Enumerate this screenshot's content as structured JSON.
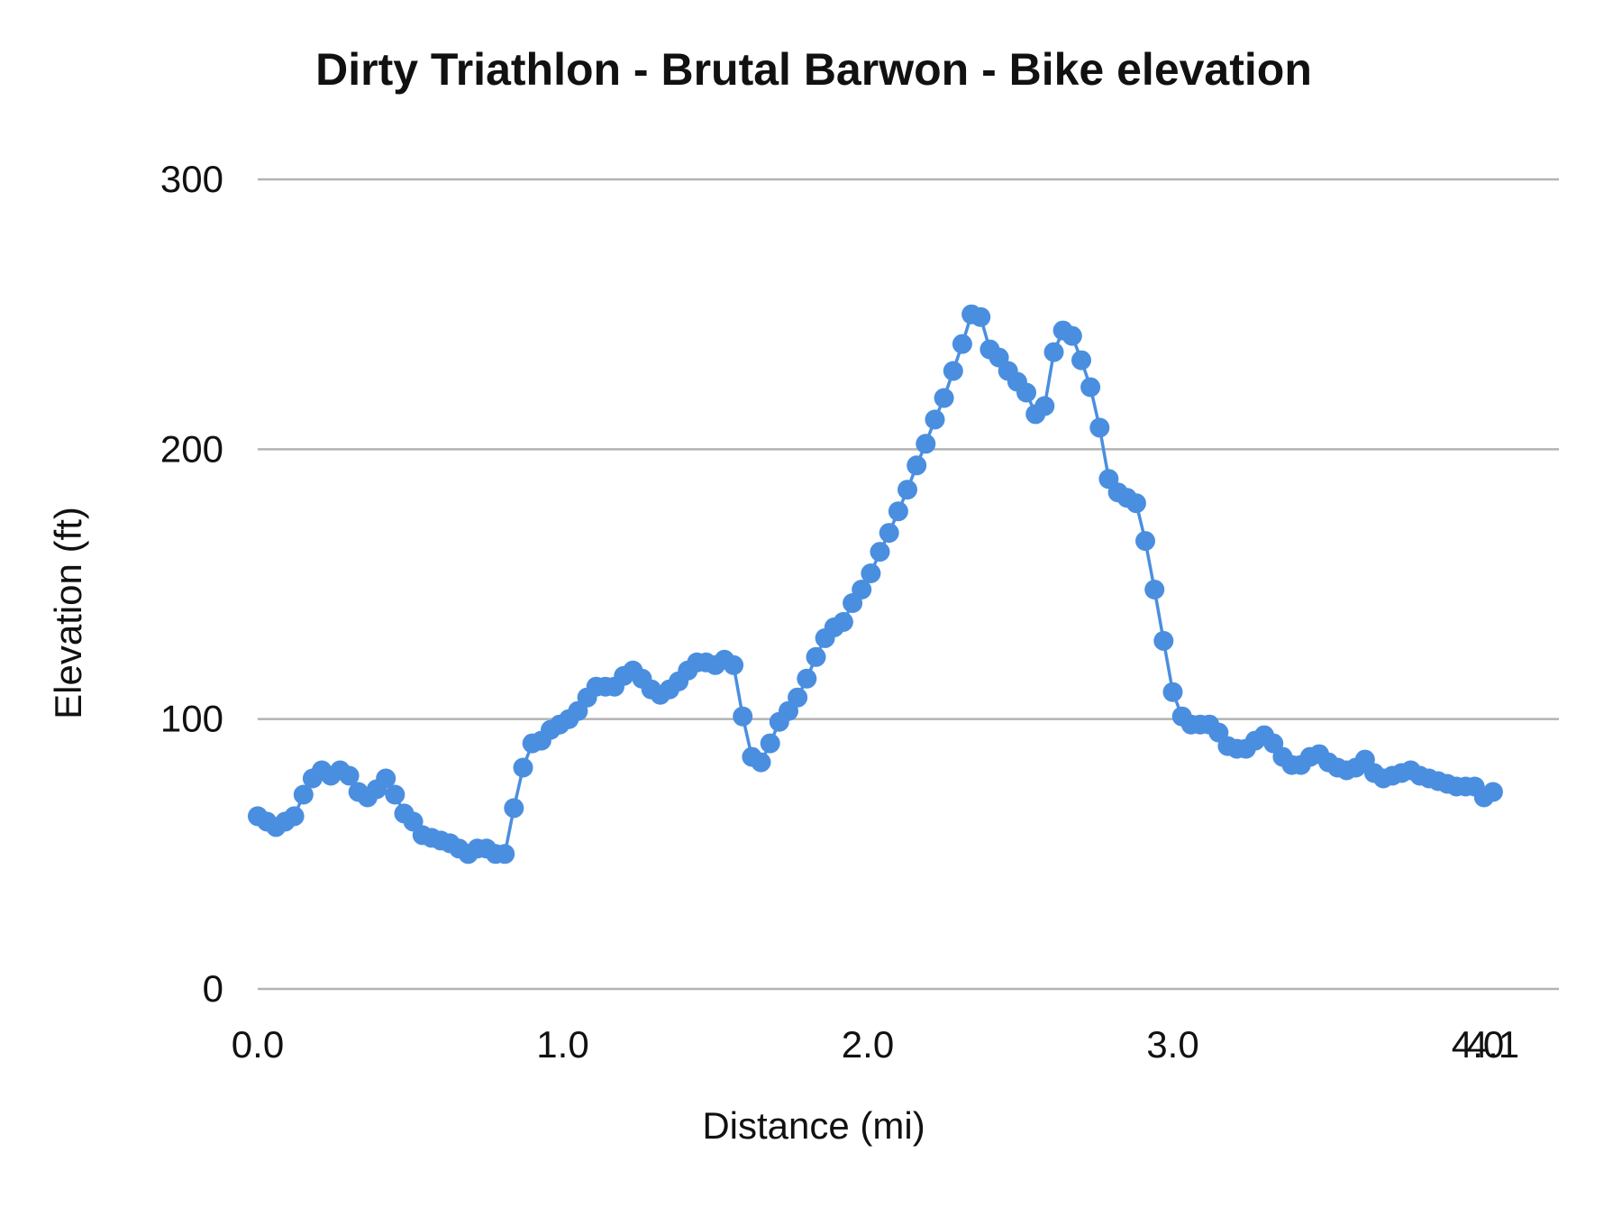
{
  "chart_data": {
    "type": "line",
    "title": "Dirty Triathlon - Brutal Barwon  - Bike  elevation",
    "xlabel": "Distance (mi)",
    "ylabel": "Elevation (ft)",
    "xlim": [
      0,
      4.05
    ],
    "ylim": [
      0,
      300
    ],
    "x_ticks": [
      {
        "value": 0,
        "label": "0.0"
      },
      {
        "value": 1,
        "label": "1.0"
      },
      {
        "value": 2,
        "label": "2.0"
      },
      {
        "value": 3,
        "label": "3.0"
      },
      {
        "value": 4,
        "label": "4.0"
      },
      {
        "value": 4.05,
        "label": "4.1"
      }
    ],
    "y_ticks": [
      {
        "value": 0,
        "label": "0"
      },
      {
        "value": 100,
        "label": "100"
      },
      {
        "value": 200,
        "label": "200"
      },
      {
        "value": 300,
        "label": "300"
      }
    ],
    "grid": true,
    "legend": "none",
    "color": "#4a8ee0",
    "series": [
      {
        "x": [
          0.0,
          0.03,
          0.06,
          0.09,
          0.12,
          0.15,
          0.18,
          0.21,
          0.24,
          0.27,
          0.3,
          0.33,
          0.36,
          0.39,
          0.42,
          0.45,
          0.48,
          0.51,
          0.54,
          0.57,
          0.6,
          0.63,
          0.66,
          0.69,
          0.72,
          0.75,
          0.78,
          0.81,
          0.84,
          0.87,
          0.9,
          0.93,
          0.96,
          0.99,
          1.02,
          1.05,
          1.08,
          1.11,
          1.14,
          1.17,
          1.2,
          1.23,
          1.26,
          1.29,
          1.32,
          1.35,
          1.38,
          1.41,
          1.44,
          1.47,
          1.5,
          1.53,
          1.56,
          1.59,
          1.62,
          1.65,
          1.68,
          1.71,
          1.74,
          1.77,
          1.8,
          1.83,
          1.86,
          1.89,
          1.92,
          1.95,
          1.98,
          2.01,
          2.04,
          2.07,
          2.1,
          2.13,
          2.16,
          2.19,
          2.22,
          2.25,
          2.28,
          2.31,
          2.34,
          2.37,
          2.4,
          2.43,
          2.46,
          2.49,
          2.52,
          2.55,
          2.58,
          2.61,
          2.64,
          2.67,
          2.7,
          2.73,
          2.76,
          2.79,
          2.82,
          2.85,
          2.88,
          2.91,
          2.94,
          2.97,
          3.0,
          3.03,
          3.06,
          3.09,
          3.12,
          3.15,
          3.18,
          3.21,
          3.24,
          3.27,
          3.3,
          3.33,
          3.36,
          3.39,
          3.42,
          3.45,
          3.48,
          3.51,
          3.54,
          3.57,
          3.6,
          3.63,
          3.66,
          3.69,
          3.72,
          3.75,
          3.78,
          3.81,
          3.84,
          3.87,
          3.9,
          3.93,
          3.96,
          3.99,
          4.02,
          4.05
        ],
        "y": [
          64,
          62,
          60,
          62,
          64,
          72,
          78,
          81,
          79,
          81,
          79,
          73,
          71,
          74,
          78,
          72,
          65,
          62,
          57,
          56,
          55,
          54,
          52,
          50,
          52,
          52,
          50,
          50,
          67,
          82,
          91,
          92,
          96,
          98,
          100,
          103,
          108,
          112,
          112,
          112,
          116,
          118,
          115,
          111,
          109,
          111,
          114,
          118,
          121,
          121,
          120,
          122,
          120,
          101,
          86,
          84,
          91,
          99,
          103,
          108,
          115,
          123,
          130,
          134,
          136,
          143,
          148,
          154,
          162,
          169,
          177,
          185,
          194,
          202,
          211,
          219,
          229,
          239,
          250,
          249,
          237,
          234,
          229,
          225,
          221,
          213,
          216,
          236,
          244,
          242,
          233,
          223,
          208,
          189,
          184,
          182,
          180,
          166,
          148,
          129,
          110,
          101,
          98,
          98,
          98,
          95,
          90,
          89,
          89,
          92,
          94,
          91,
          86,
          83,
          83,
          86,
          87,
          84,
          82,
          81,
          82,
          85,
          80,
          78,
          79,
          80,
          81,
          79,
          78,
          77,
          76,
          75,
          75,
          75,
          71,
          73
        ]
      }
    ]
  }
}
